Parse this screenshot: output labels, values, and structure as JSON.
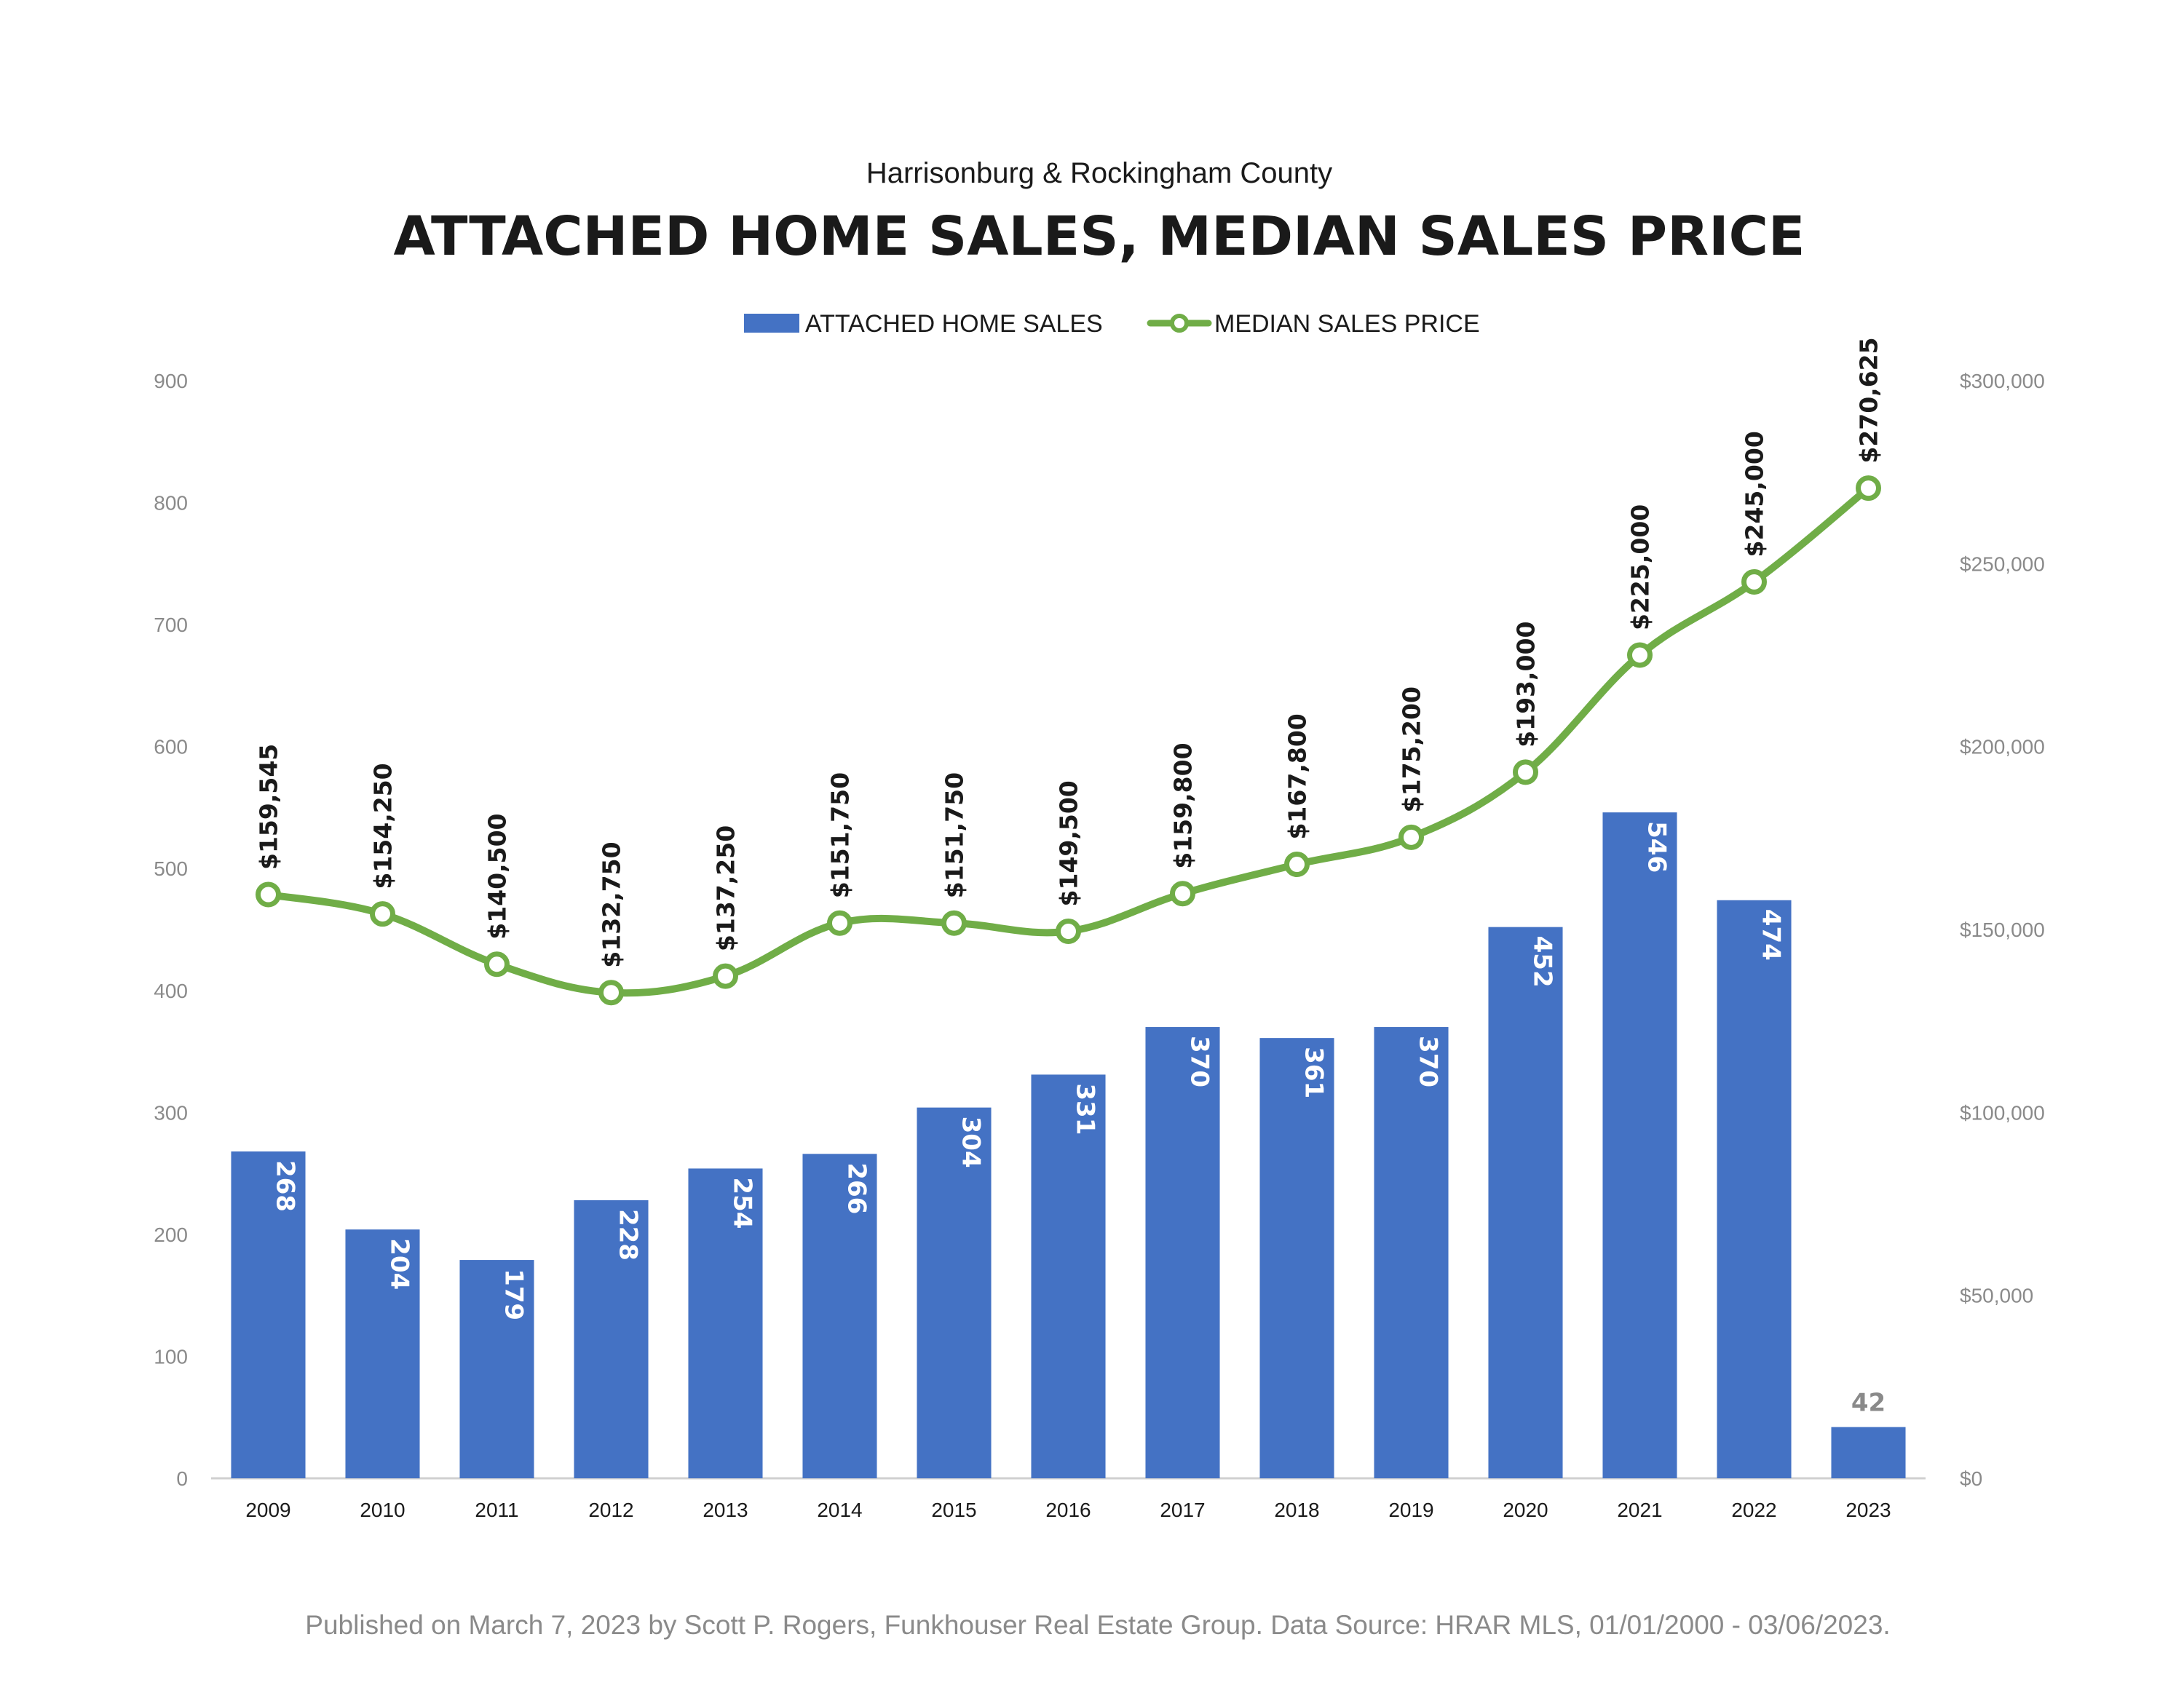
{
  "chart_data": {
    "type": "bar",
    "subtitle": "Harrisonburg & Rockingham County",
    "title": "ATTACHED HOME SALES, MEDIAN SALES PRICE",
    "categories": [
      "2009",
      "2010",
      "2011",
      "2012",
      "2013",
      "2014",
      "2015",
      "2016",
      "2017",
      "2018",
      "2019",
      "2020",
      "2021",
      "2022",
      "2023"
    ],
    "series": [
      {
        "name": "ATTACHED HOME SALES",
        "type": "bar",
        "axis": "left",
        "color": "#4472C4",
        "values": [
          268,
          204,
          179,
          228,
          254,
          266,
          304,
          331,
          370,
          361,
          370,
          452,
          546,
          474,
          42
        ],
        "labels": [
          "268",
          "204",
          "179",
          "228",
          "254",
          "266",
          "304",
          "331",
          "370",
          "361",
          "370",
          "452",
          "546",
          "474",
          "42"
        ]
      },
      {
        "name": "MEDIAN SALES PRICE",
        "type": "line",
        "axis": "right",
        "color": "#70AD47",
        "values": [
          159545,
          154250,
          140500,
          132750,
          137250,
          151750,
          151750,
          149500,
          159800,
          167800,
          175200,
          193000,
          225000,
          245000,
          270625
        ],
        "labels": [
          "$159,545",
          "$154,250",
          "$140,500",
          "$132,750",
          "$137,250",
          "$151,750",
          "$151,750",
          "$149,500",
          "$159,800",
          "$167,800",
          "$175,200",
          "$193,000",
          "$225,000",
          "$245,000",
          "$270,625"
        ]
      }
    ],
    "y_left": {
      "ylim": [
        0,
        900
      ],
      "ticks": [
        "0",
        "100",
        "200",
        "300",
        "400",
        "500",
        "600",
        "700",
        "800",
        "900"
      ]
    },
    "y_right": {
      "ylim": [
        0,
        300000
      ],
      "ticks": [
        "$0",
        "$50,000",
        "$100,000",
        "$150,000",
        "$200,000",
        "$250,000",
        "$300,000"
      ]
    },
    "legend": {
      "position": "top-center"
    },
    "grid": false,
    "footer": "Published on March 7, 2023 by Scott P. Rogers, Funkhouser Real Estate Group. Data Source: HRAR MLS, 01/01/2000 - 03/06/2023."
  }
}
